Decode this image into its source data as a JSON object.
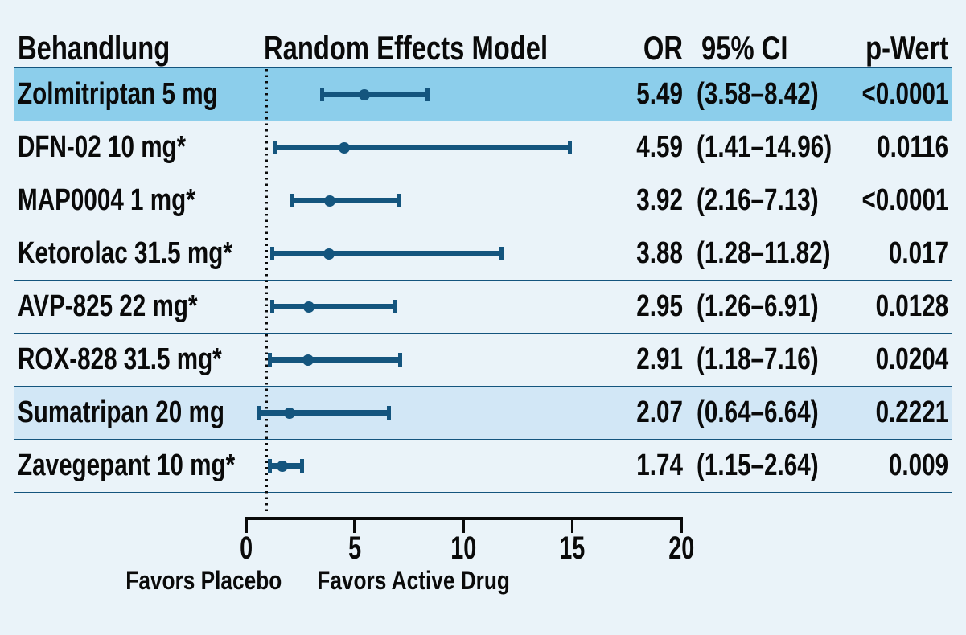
{
  "colors": {
    "background": "#EAF3F9",
    "marker_blue": "#14557E",
    "separator_blue": "#14557E",
    "highlight_strong": "#8CCEEB",
    "highlight_soft": "#D2E7F6",
    "text": "#0A0A0A"
  },
  "table": {
    "headers": {
      "treatment": "Behandlung",
      "plot": "Random Effects Model",
      "or": "OR",
      "ci": "95% CI",
      "p": "p-Wert"
    }
  },
  "chart_data": {
    "type": "forest",
    "title": "Random Effects Model",
    "xlim": [
      0,
      20
    ],
    "ticks": [
      0,
      5,
      10,
      15,
      20
    ],
    "reference_line": 1,
    "favors_left": "Favors Placebo",
    "favors_right": "Favors Active Drug",
    "series": [
      {
        "label": "Zolmitriptan 5 mg",
        "or": 5.49,
        "ci": [
          3.58,
          8.42
        ],
        "or_text": "5.49",
        "ci_text": "(3.58–8.42)",
        "p_text": "<0.0001",
        "highlight": "strong"
      },
      {
        "label": "DFN-02 10 mg*",
        "or": 4.59,
        "ci": [
          1.41,
          14.96
        ],
        "or_text": "4.59",
        "ci_text": "(1.41–14.96)",
        "p_text": "0.0116",
        "highlight": "none"
      },
      {
        "label": "MAP0004 1 mg*",
        "or": 3.92,
        "ci": [
          2.16,
          7.13
        ],
        "or_text": "3.92",
        "ci_text": "(2.16–7.13)",
        "p_text": "<0.0001",
        "highlight": "none"
      },
      {
        "label": "Ketorolac 31.5 mg*",
        "or": 3.88,
        "ci": [
          1.28,
          11.82
        ],
        "or_text": "3.88",
        "ci_text": "(1.28–11.82)",
        "p_text": "0.017",
        "highlight": "none"
      },
      {
        "label": "AVP-825 22 mg*",
        "or": 2.95,
        "ci": [
          1.26,
          6.91
        ],
        "or_text": "2.95",
        "ci_text": "(1.26–6.91)",
        "p_text": "0.0128",
        "highlight": "none"
      },
      {
        "label": "ROX-828 31.5 mg*",
        "or": 2.91,
        "ci": [
          1.18,
          7.16
        ],
        "or_text": "2.91",
        "ci_text": "(1.18–7.16)",
        "p_text": "0.0204",
        "highlight": "none"
      },
      {
        "label": "Sumatripan 20 mg",
        "or": 2.07,
        "ci": [
          0.64,
          6.64
        ],
        "or_text": "2.07",
        "ci_text": "(0.64–6.64)",
        "p_text": "0.2221",
        "highlight": "soft"
      },
      {
        "label": "Zavegepant 10 mg*",
        "or": 1.74,
        "ci": [
          1.15,
          2.64
        ],
        "or_text": "1.74",
        "ci_text": "(1.15–2.64)",
        "p_text": "0.009",
        "highlight": "none"
      }
    ]
  }
}
